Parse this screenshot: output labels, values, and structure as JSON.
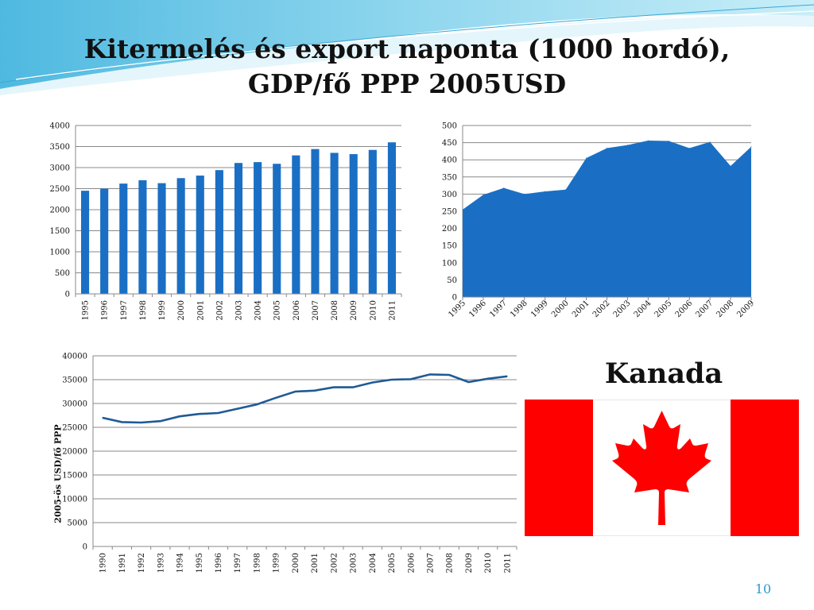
{
  "slide": {
    "title_line1": "Kitermelés és export naponta (1000 hordó),",
    "title_line2": "GDP/fő PPP 2005USD",
    "country": "Kanada",
    "page_number": "10",
    "flag": {
      "red": "#ff0000",
      "white": "#ffffff",
      "name": "canada-flag"
    }
  },
  "chart_data": [
    {
      "type": "bar",
      "categories": [
        "1995",
        "1996",
        "1997",
        "1998",
        "1999",
        "2000",
        "2001",
        "2002",
        "2003",
        "2004",
        "2005",
        "2006",
        "2007",
        "2008",
        "2009",
        "2010",
        "2011"
      ],
      "values": [
        2450,
        2500,
        2620,
        2700,
        2630,
        2750,
        2810,
        2940,
        3110,
        3130,
        3090,
        3290,
        3440,
        3350,
        3320,
        3420,
        3600
      ],
      "title": "",
      "xlabel": "",
      "ylabel": "",
      "ylim": [
        0,
        4000
      ],
      "yticks": [
        0,
        500,
        1000,
        1500,
        2000,
        2500,
        3000,
        3500,
        4000
      ],
      "grid": true,
      "color": "#1a6fc4"
    },
    {
      "type": "area",
      "categories": [
        "1995",
        "1996",
        "1997",
        "1998",
        "1999",
        "2000",
        "2001",
        "2002",
        "2003",
        "2004",
        "2005",
        "2006",
        "2007",
        "2008",
        "2009"
      ],
      "values": [
        255,
        298,
        318,
        300,
        308,
        313,
        405,
        434,
        443,
        456,
        455,
        434,
        452,
        382,
        438
      ],
      "title": "",
      "xlabel": "",
      "ylabel": "",
      "ylim": [
        0,
        500
      ],
      "yticks": [
        0,
        50,
        100,
        150,
        200,
        250,
        300,
        350,
        400,
        450,
        500
      ],
      "grid": true,
      "color": "#1a6fc4"
    },
    {
      "type": "line",
      "categories": [
        "1990",
        "1991",
        "1992",
        "1993",
        "1994",
        "1995",
        "1996",
        "1997",
        "1998",
        "1999",
        "2000",
        "2001",
        "2002",
        "2003",
        "2004",
        "2005",
        "2006",
        "2007",
        "2008",
        "2009",
        "2010",
        "2011"
      ],
      "values": [
        27000,
        26100,
        26000,
        26300,
        27300,
        27800,
        28000,
        28900,
        29800,
        31200,
        32500,
        32700,
        33400,
        33400,
        34400,
        35000,
        35100,
        36100,
        36000,
        34500,
        35200,
        35700
      ],
      "title": "",
      "xlabel": "",
      "ylabel": "2005-ös USD/fő PPP",
      "ylim": [
        0,
        40000
      ],
      "yticks": [
        0,
        5000,
        10000,
        15000,
        20000,
        25000,
        30000,
        35000,
        40000
      ],
      "grid": true,
      "color": "#1f5a96"
    }
  ]
}
